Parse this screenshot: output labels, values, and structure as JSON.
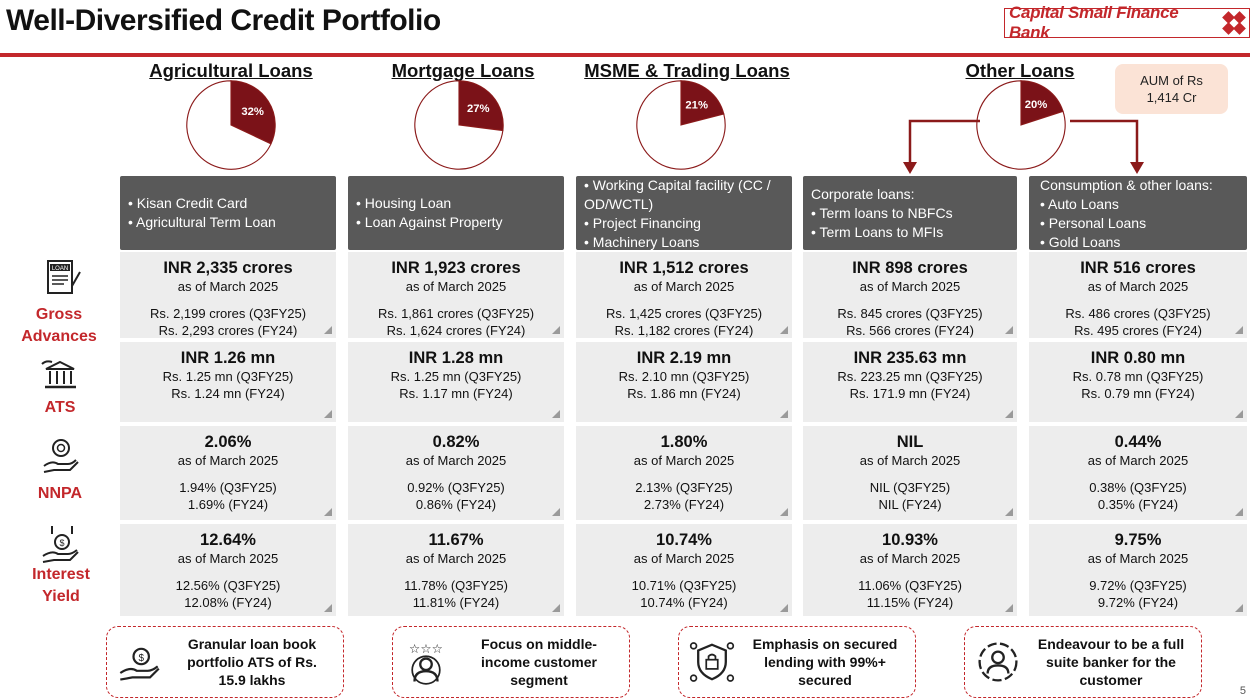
{
  "header": {
    "title": "Well-Diversified Credit Portfolio",
    "logo_text": "Capital Small Finance Bank",
    "accent": "#c3272b"
  },
  "aum_note": {
    "line1": "AUM of Rs",
    "line2": "1,414 Cr"
  },
  "chart_data": [
    {
      "type": "pie",
      "title": "Agricultural Loans",
      "values": [
        32,
        68
      ],
      "labels": [
        "32%",
        ""
      ],
      "colors": [
        "#7b1218",
        "#ffffff"
      ]
    },
    {
      "type": "pie",
      "title": "Mortgage Loans",
      "values": [
        27,
        73
      ],
      "labels": [
        "27%",
        ""
      ],
      "colors": [
        "#7b1218",
        "#ffffff"
      ]
    },
    {
      "type": "pie",
      "title": "MSME & Trading Loans",
      "values": [
        21,
        79
      ],
      "labels": [
        "21%",
        ""
      ],
      "colors": [
        "#7b1218",
        "#ffffff"
      ]
    },
    {
      "type": "pie",
      "title": "Other Loans",
      "values": [
        20,
        80
      ],
      "labels": [
        "20%",
        ""
      ],
      "colors": [
        "#7b1218",
        "#ffffff"
      ]
    }
  ],
  "segments": [
    {
      "title": "Agricultural Loans",
      "pie_label": "32%",
      "desc": [
        "• Kisan Credit Card",
        "• Agricultural Term Loan"
      ],
      "gross": {
        "main": "INR 2,335 crores",
        "asof": "as of March 2025",
        "q3": "Rs. 2,199 crores (Q3FY25)",
        "fy": "Rs. 2,293 crores (FY24)"
      },
      "ats": {
        "main": "INR 1.26 mn",
        "q3": "Rs. 1.25 mn (Q3FY25)",
        "fy": "Rs. 1.24 mn (FY24)"
      },
      "nnpa": {
        "main": "2.06%",
        "asof": "as of March 2025",
        "q3": "1.94% (Q3FY25)",
        "fy": "1.69% (FY24)"
      },
      "yield": {
        "main": "12.64%",
        "asof": "as of March 2025",
        "q3": "12.56% (Q3FY25)",
        "fy": "12.08% (FY24)"
      }
    },
    {
      "title": "Mortgage Loans",
      "pie_label": "27%",
      "desc": [
        "• Housing Loan",
        "• Loan Against Property"
      ],
      "gross": {
        "main": "INR 1,923 crores",
        "asof": "as of March 2025",
        "q3": "Rs. 1,861 crores (Q3FY25)",
        "fy": "Rs. 1,624 crores (FY24)"
      },
      "ats": {
        "main": "INR 1.28 mn",
        "q3": "Rs. 1.25 mn (Q3FY25)",
        "fy": "Rs. 1.17 mn (FY24)"
      },
      "nnpa": {
        "main": "0.82%",
        "asof": "as of March 2025",
        "q3": "0.92% (Q3FY25)",
        "fy": "0.86% (FY24)"
      },
      "yield": {
        "main": "11.67%",
        "asof": "as of March 2025",
        "q3": "11.78% (Q3FY25)",
        "fy": "11.81% (FY24)"
      }
    },
    {
      "title": "MSME & Trading Loans",
      "pie_label": "21%",
      "desc": [
        "• Working Capital facility (CC /",
        "OD/WCTL)",
        "• Project Financing",
        "• Machinery Loans"
      ],
      "gross": {
        "main": "INR 1,512 crores",
        "asof": "as of March 2025",
        "q3": "Rs. 1,425 crores (Q3FY25)",
        "fy": "Rs. 1,182 crores (FY24)"
      },
      "ats": {
        "main": "INR 2.19 mn",
        "q3": "Rs. 2.10 mn (Q3FY25)",
        "fy": "Rs. 1.86 mn (FY24)"
      },
      "nnpa": {
        "main": "1.80%",
        "asof": "as of March 2025",
        "q3": "2.13% (Q3FY25)",
        "fy": "2.73% (FY24)"
      },
      "yield": {
        "main": "10.74%",
        "asof": "as of March 2025",
        "q3": "10.71% (Q3FY25)",
        "fy": "10.74% (FY24)"
      }
    },
    {
      "title": "Corporate loans:",
      "desc": [
        "Corporate loans:",
        "• Term loans to NBFCs",
        "• Term Loans to MFIs"
      ],
      "gross": {
        "main": "INR 898 crores",
        "asof": "as of March 2025",
        "q3": "Rs. 845 crores (Q3FY25)",
        "fy": "Rs. 566 crores (FY24)"
      },
      "ats": {
        "main": "INR 235.63 mn",
        "q3": "Rs. 223.25 mn (Q3FY25)",
        "fy": "Rs. 171.9 mn (FY24)"
      },
      "nnpa": {
        "main": "NIL",
        "asof": "as of March 2025",
        "q3": "NIL (Q3FY25)",
        "fy": "NIL (FY24)"
      },
      "yield": {
        "main": "10.93%",
        "asof": "as of March 2025",
        "q3": "11.06% (Q3FY25)",
        "fy": "11.15% (FY24)"
      }
    },
    {
      "title": "Consumption & other loans:",
      "desc": [
        "Consumption & other loans:",
        "• Auto Loans",
        "• Personal Loans",
        "• Gold Loans"
      ],
      "gross": {
        "main": "INR 516 crores",
        "asof": "as of March 2025",
        "q3": "Rs. 486 crores (Q3FY25)",
        "fy": "Rs. 495 crores (FY24)"
      },
      "ats": {
        "main": "INR 0.80 mn",
        "q3": "Rs. 0.78 mn (Q3FY25)",
        "fy": "Rs. 0.79 mn (FY24)"
      },
      "nnpa": {
        "main": "0.44%",
        "asof": "as of March 2025",
        "q3": "0.38% (Q3FY25)",
        "fy": "0.35% (FY24)"
      },
      "yield": {
        "main": "9.75%",
        "asof": "as of March 2025",
        "q3": "9.72% (Q3FY25)",
        "fy": "9.72% (FY24)"
      }
    }
  ],
  "other_loans": {
    "title": "Other Loans",
    "pie_label": "20%"
  },
  "row_labels": {
    "gross": "Gross Advances",
    "ats": "ATS",
    "nnpa": "NNPA",
    "yield_1": "Interest",
    "yield_2": "Yield"
  },
  "row_icons": {
    "gross": "loan-document-icon",
    "ats": "bank-hand-icon",
    "nnpa": "badge-hand-icon",
    "yield": "money-growth-icon"
  },
  "highlights": [
    {
      "icon": "money-hand-icon",
      "lines": [
        "Granular loan book",
        "portfolio ATS of Rs.",
        "15.9 lakhs"
      ]
    },
    {
      "icon": "stars-customer-icon",
      "lines": [
        "Focus on middle-",
        "income customer",
        "segment"
      ]
    },
    {
      "icon": "secure-lock-icon",
      "lines": [
        "Emphasis on secured",
        "lending with 99%+",
        "secured"
      ]
    },
    {
      "icon": "full-suite-icon",
      "lines": [
        "Endeavour to be a full",
        "suite banker for the",
        "customer"
      ]
    }
  ],
  "page_number": "5"
}
